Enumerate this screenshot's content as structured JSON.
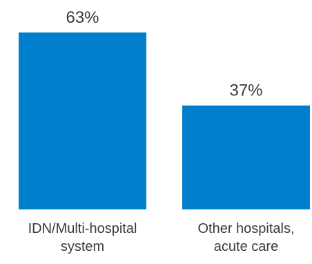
{
  "chart_data": {
    "type": "bar",
    "categories": [
      [
        "IDN/Multi-hospital",
        "system"
      ],
      [
        "Other hospitals,",
        "acute care"
      ]
    ],
    "values": [
      63,
      37
    ],
    "value_labels": [
      "63%",
      "37%"
    ],
    "ylim": [
      0,
      63
    ],
    "grid": false,
    "legend": "none",
    "bar_color": "#0080cc"
  }
}
